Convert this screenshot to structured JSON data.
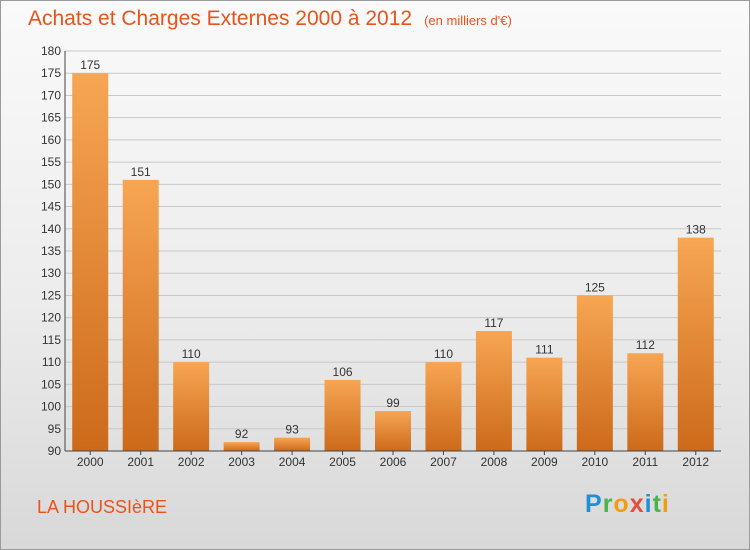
{
  "header": {
    "title": "Achats et Charges Externes 2000 à 2012",
    "subtitle": "(en milliers d'€)"
  },
  "footer": {
    "commune": "LA HOUSSIèRE",
    "logo_letters": [
      "P",
      "r",
      "o",
      "x",
      "i",
      "t",
      "i"
    ],
    "logo_colors": [
      "#1f8fd6",
      "#4bb34b",
      "#f39c12",
      "#e74c3c",
      "#1f8fd6",
      "#4bb34b",
      "#f39c12"
    ]
  },
  "colors": {
    "bar_light": "#f7a654",
    "bar_dark": "#cc6a1a",
    "grid": "#c8c8c8",
    "axis": "#444444",
    "accent": "#e8541a"
  },
  "chart_data": {
    "type": "bar",
    "title": "Achats et Charges Externes 2000 à 2012",
    "subtitle": "(en milliers d'€)",
    "categories": [
      "2000",
      "2001",
      "2002",
      "2003",
      "2004",
      "2005",
      "2006",
      "2007",
      "2008",
      "2009",
      "2010",
      "2011",
      "2012"
    ],
    "values": [
      175,
      151,
      110,
      92,
      93,
      106,
      99,
      110,
      117,
      111,
      125,
      112,
      138
    ],
    "ylim": [
      90,
      180
    ],
    "yticks": [
      90,
      95,
      100,
      105,
      110,
      115,
      120,
      125,
      130,
      135,
      140,
      145,
      150,
      155,
      160,
      165,
      170,
      175,
      180
    ],
    "grid": true,
    "data_labels": true
  }
}
